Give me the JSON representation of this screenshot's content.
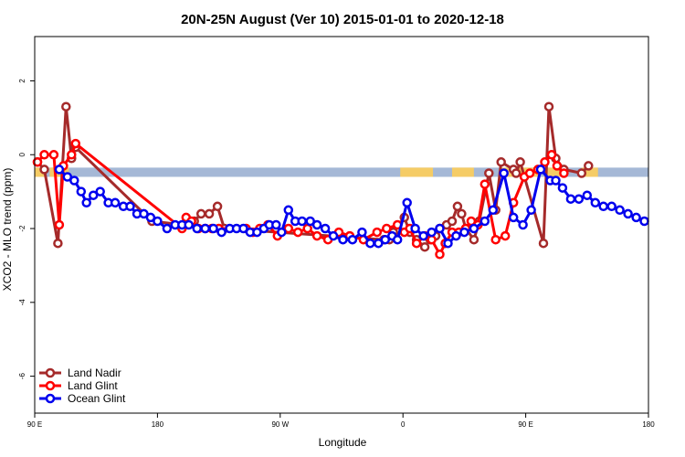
{
  "chart_data": {
    "type": "line",
    "title": "20N-25N August (Ver 10)   2015-01-01 to 2020-12-18",
    "xlabel": "Longitude",
    "ylabel": "XCO2 - MLO trend (ppm)",
    "x_unit": "degrees longitude, continuous from 90 E (90) through 180 and 90 W (270) to 0 (360) and 90 E (450) to 180 (540)",
    "xlim": [
      90,
      540
    ],
    "ylim": [
      -7,
      3.2
    ],
    "x_ticks": [
      {
        "value": 90,
        "label": "90 E"
      },
      {
        "value": 180,
        "label": "180"
      },
      {
        "value": 270,
        "label": "90 W"
      },
      {
        "value": 360,
        "label": "0"
      },
      {
        "value": 450,
        "label": "90 E"
      },
      {
        "value": 540,
        "label": "180"
      }
    ],
    "y_ticks": [
      {
        "value": 2,
        "label": "2"
      },
      {
        "value": 0,
        "label": "0"
      },
      {
        "value": -2,
        "label": "-2"
      },
      {
        "value": -4,
        "label": "-4"
      },
      {
        "value": -6,
        "label": "-6"
      }
    ],
    "grid": false,
    "legend_position": "bottom-left",
    "colors": {
      "land_nadir": "#a52a2a",
      "land_glint": "#ff0000",
      "ocean_glint": "#0000ee",
      "ocean_band": "#a5b8d6",
      "land_band": "#f5cc66"
    },
    "reference_band": {
      "y_top": -0.35,
      "y_bottom": -0.6,
      "land_segments": [
        [
          90,
          97
        ],
        [
          101,
          115
        ],
        [
          102,
          113
        ],
        [
          358,
          382
        ],
        [
          396,
          412
        ],
        [
          432,
          460
        ],
        [
          466,
          475
        ],
        [
          491,
          503
        ]
      ]
    },
    "series": [
      {
        "name": "Land Nadir",
        "key": "land_nadir",
        "x": [
          92,
          97,
          107,
          113,
          117,
          120,
          176,
          199,
          207,
          212,
          218,
          224,
          229,
          346,
          350,
          353,
          361,
          365,
          370,
          376,
          380,
          384,
          387,
          392,
          396,
          400,
          403,
          406,
          412,
          416,
          423,
          428,
          432,
          441,
          443,
          446,
          463,
          467,
          472,
          478,
          491,
          496
        ],
        "y": [
          -0.2,
          -0.4,
          -2.4,
          1.3,
          -0.1,
          0.2,
          -1.8,
          -1.9,
          -1.8,
          -1.6,
          -1.6,
          -1.4,
          -2.0,
          -2.3,
          -2.3,
          -2.1,
          -1.7,
          -2.1,
          -2.3,
          -2.5,
          -2.3,
          -2.2,
          -2.0,
          -1.9,
          -1.8,
          -1.4,
          -1.6,
          -2.0,
          -2.3,
          -1.8,
          -0.5,
          -1.5,
          -0.2,
          -0.4,
          -0.5,
          -0.2,
          -2.4,
          1.3,
          -0.1,
          -0.4,
          -0.5,
          -0.3
        ],
        "draw_line": true
      },
      {
        "name": "Land Glint",
        "key": "land_glint",
        "x": [
          92,
          97,
          104,
          108,
          111,
          117,
          120,
          198,
          201,
          205,
          210,
          215,
          220,
          225,
          245,
          250,
          255,
          261,
          268,
          276,
          283,
          290,
          297,
          305,
          313,
          321,
          331,
          341,
          348,
          356,
          361,
          365,
          370,
          376,
          381,
          387,
          391,
          396,
          401,
          406,
          410,
          415,
          420,
          428,
          435,
          441,
          449,
          453,
          459,
          464,
          469,
          473,
          478
        ],
        "y": [
          -0.2,
          0.0,
          0.0,
          -1.9,
          -0.3,
          0.0,
          0.3,
          -2.0,
          -1.7,
          -1.8,
          -2.0,
          -2.0,
          -2.0,
          -2.0,
          -2.0,
          -2.1,
          -2.0,
          -1.9,
          -2.2,
          -2.0,
          -2.1,
          -2.0,
          -2.2,
          -2.3,
          -2.1,
          -2.2,
          -2.3,
          -2.1,
          -2.0,
          -1.9,
          -2.1,
          -2.0,
          -2.4,
          -2.2,
          -2.3,
          -2.7,
          -2.4,
          -2.1,
          -2.1,
          -2.0,
          -1.8,
          -1.9,
          -0.8,
          -2.3,
          -2.2,
          -1.3,
          -0.6,
          -0.5,
          -0.4,
          -0.2,
          0.0,
          -0.3,
          -0.5
        ],
        "draw_line": true
      },
      {
        "name": "Ocean Glint",
        "key": "ocean_glint",
        "x": [
          108,
          114,
          119,
          124,
          128,
          133,
          138,
          144,
          149,
          155,
          160,
          165,
          170,
          175,
          180,
          187,
          193,
          198,
          203,
          209,
          215,
          221,
          227,
          233,
          238,
          243,
          248,
          253,
          258,
          262,
          267,
          271,
          276,
          281,
          286,
          292,
          297,
          303,
          309,
          316,
          323,
          330,
          336,
          342,
          347,
          352,
          356,
          363,
          369,
          375,
          381,
          387,
          393,
          399,
          405,
          412,
          420,
          426,
          434,
          441,
          448,
          454,
          461,
          468,
          472,
          477,
          483,
          489,
          495,
          501,
          507,
          513,
          519,
          525,
          531,
          537
        ],
        "y": [
          -0.4,
          -0.6,
          -0.7,
          -1.0,
          -1.3,
          -1.1,
          -1.0,
          -1.3,
          -1.3,
          -1.4,
          -1.4,
          -1.6,
          -1.6,
          -1.7,
          -1.8,
          -2.0,
          -1.9,
          -1.9,
          -1.9,
          -2.0,
          -2.0,
          -2.0,
          -2.1,
          -2.0,
          -2.0,
          -2.0,
          -2.1,
          -2.1,
          -2.0,
          -1.9,
          -1.9,
          -2.1,
          -1.5,
          -1.8,
          -1.8,
          -1.8,
          -1.9,
          -2.0,
          -2.2,
          -2.3,
          -2.3,
          -2.1,
          -2.4,
          -2.4,
          -2.3,
          -2.2,
          -2.3,
          -1.3,
          -2.0,
          -2.2,
          -2.1,
          -2.0,
          -2.4,
          -2.2,
          -2.1,
          -2.0,
          -1.8,
          -1.5,
          -0.5,
          -1.7,
          -1.9,
          -1.5,
          -0.4,
          -0.7,
          -0.7,
          -0.9,
          -1.2,
          -1.2,
          -1.1,
          -1.3,
          -1.4,
          -1.4,
          -1.5,
          -1.6,
          -1.7,
          -1.8
        ],
        "draw_line": true
      }
    ]
  }
}
